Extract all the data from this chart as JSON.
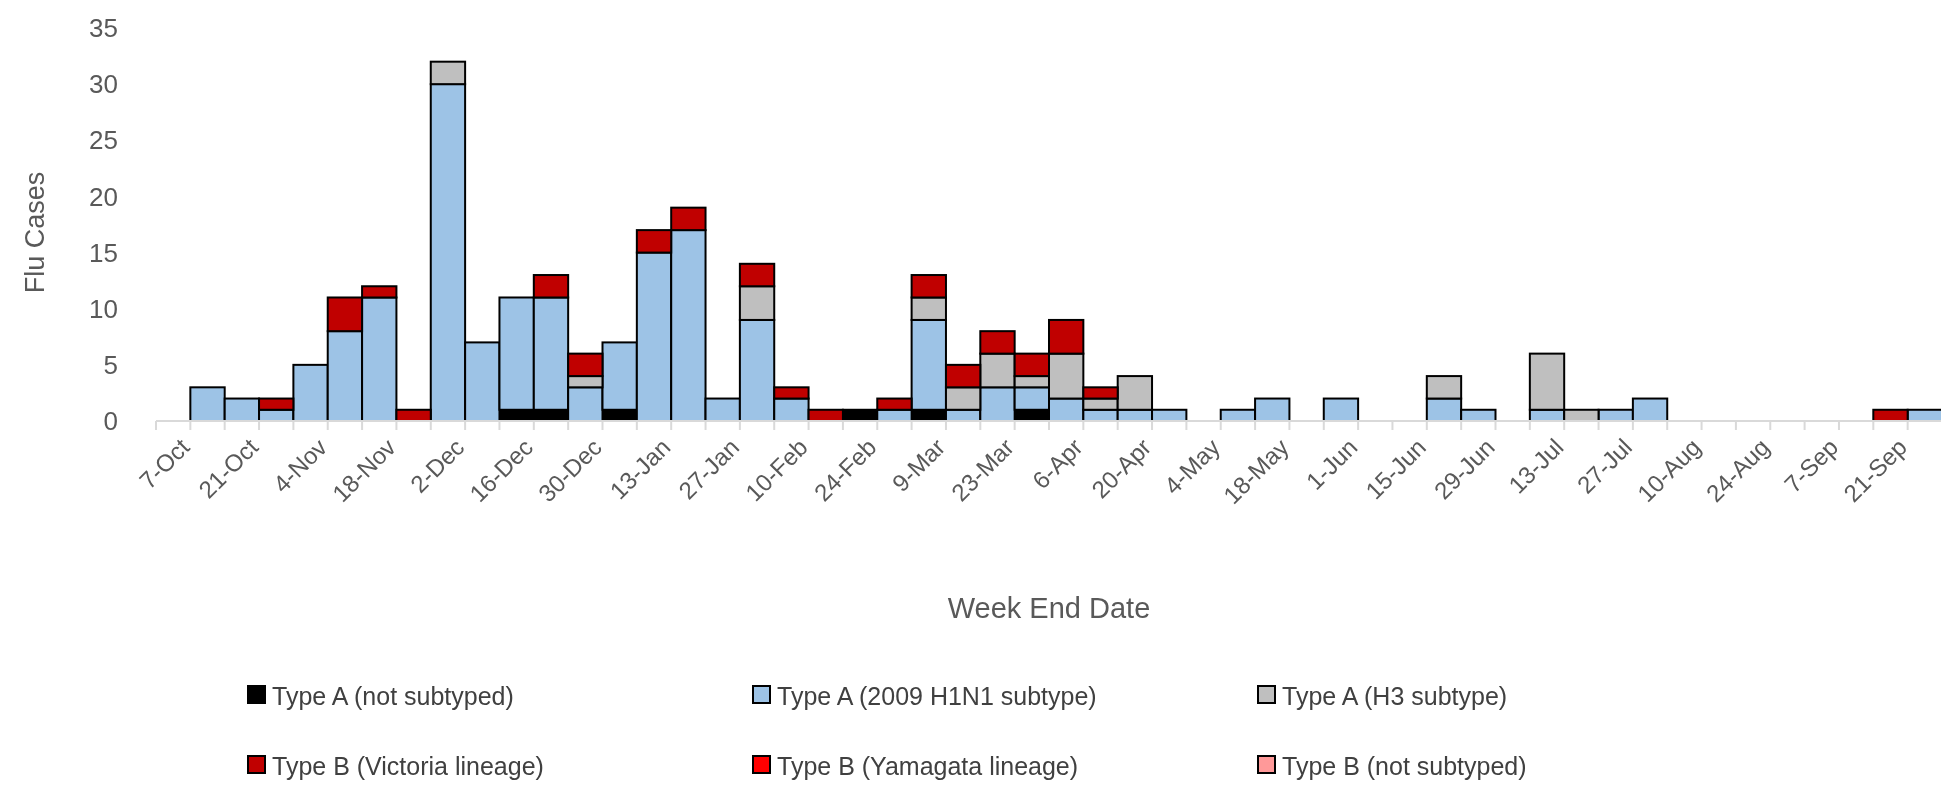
{
  "chart_data": {
    "type": "bar",
    "stacked": true,
    "xlabel": "Week End Date",
    "ylabel": "Flu Cases",
    "ylim": [
      0,
      35
    ],
    "yticks": [
      0,
      5,
      10,
      15,
      20,
      25,
      30,
      35
    ],
    "grid": false,
    "legend": "bottom",
    "categories": [
      "7-Oct",
      null,
      "21-Oct",
      null,
      "4-Nov",
      null,
      "18-Nov",
      null,
      "2-Dec",
      null,
      "16-Dec",
      null,
      "30-Dec",
      null,
      "13-Jan",
      null,
      "27-Jan",
      null,
      "10-Feb",
      null,
      "24-Feb",
      null,
      "9-Mar",
      null,
      "23-Mar",
      null,
      "6-Apr",
      null,
      "20-Apr",
      null,
      "4-May",
      null,
      "18-May",
      null,
      "1-Jun",
      null,
      "15-Jun",
      null,
      "29-Jun",
      null,
      "13-Jul",
      null,
      "27-Jul",
      null,
      "10-Aug",
      null,
      "24-Aug",
      null,
      "7-Sep",
      null,
      "21-Sep",
      null
    ],
    "series": [
      {
        "name": "Type A (not subtyped)",
        "color": "#000000",
        "values": [
          0,
          0,
          0,
          0,
          0,
          0,
          0,
          0,
          0,
          0,
          1,
          1,
          0,
          1,
          0,
          0,
          0,
          0,
          0,
          0,
          1,
          0,
          1,
          0,
          0,
          1,
          0,
          0,
          0,
          0,
          0,
          0,
          0,
          0,
          0,
          0,
          0,
          0,
          0,
          0,
          0,
          0,
          0,
          0,
          0,
          0,
          0,
          0,
          0,
          0,
          0,
          0
        ]
      },
      {
        "name": "Type A (2009 H1N1 subtype)",
        "color": "#9dc3e6",
        "values": [
          0,
          3,
          2,
          1,
          5,
          8,
          11,
          0,
          30,
          7,
          10,
          10,
          3,
          6,
          15,
          17,
          2,
          9,
          2,
          0,
          0,
          1,
          8,
          1,
          3,
          2,
          2,
          1,
          1,
          1,
          0,
          1,
          2,
          0,
          2,
          0,
          0,
          2,
          1,
          0,
          1,
          0,
          1,
          2,
          0,
          0,
          0,
          0,
          0,
          0,
          0,
          1
        ]
      },
      {
        "name": "Type A (H3 subtype)",
        "color": "#bfbfbf",
        "values": [
          0,
          0,
          0,
          0,
          0,
          0,
          0,
          0,
          2,
          0,
          0,
          0,
          1,
          0,
          0,
          0,
          0,
          3,
          0,
          0,
          0,
          0,
          2,
          2,
          3,
          1,
          4,
          1,
          3,
          0,
          0,
          0,
          0,
          0,
          0,
          0,
          0,
          2,
          0,
          0,
          5,
          1,
          0,
          0,
          0,
          0,
          0,
          0,
          0,
          0,
          0,
          0
        ]
      },
      {
        "name": "Type B (Victoria lineage)",
        "color": "#c00000",
        "values": [
          0,
          0,
          0,
          1,
          0,
          3,
          1,
          1,
          0,
          0,
          0,
          2,
          2,
          0,
          2,
          2,
          0,
          2,
          1,
          1,
          0,
          1,
          2,
          2,
          2,
          2,
          3,
          1,
          0,
          0,
          0,
          0,
          0,
          0,
          0,
          0,
          0,
          0,
          0,
          0,
          0,
          0,
          0,
          0,
          0,
          0,
          0,
          0,
          0,
          0,
          1,
          0
        ]
      },
      {
        "name": "Type B (Yamagata lineage)",
        "color": "#ff0000",
        "values": [
          0,
          0,
          0,
          0,
          0,
          0,
          0,
          0,
          0,
          0,
          0,
          0,
          0,
          0,
          0,
          0,
          0,
          0,
          0,
          0,
          0,
          0,
          0,
          0,
          0,
          0,
          0,
          0,
          0,
          0,
          0,
          0,
          0,
          0,
          0,
          0,
          0,
          0,
          0,
          0,
          0,
          0,
          0,
          0,
          0,
          0,
          0,
          0,
          0,
          0,
          0,
          0
        ]
      },
      {
        "name": "Type B (not subtyped)",
        "color": "#ff9999",
        "values": [
          0,
          0,
          0,
          0,
          0,
          0,
          0,
          0,
          0,
          0,
          0,
          0,
          0,
          0,
          0,
          0,
          0,
          0,
          0,
          0,
          0,
          0,
          0,
          0,
          0,
          0,
          0,
          0,
          0,
          0,
          0,
          0,
          0,
          0,
          0,
          0,
          0,
          0,
          0,
          0,
          0,
          0,
          0,
          0,
          0,
          0,
          0,
          0,
          0,
          0,
          0,
          0
        ]
      }
    ]
  }
}
